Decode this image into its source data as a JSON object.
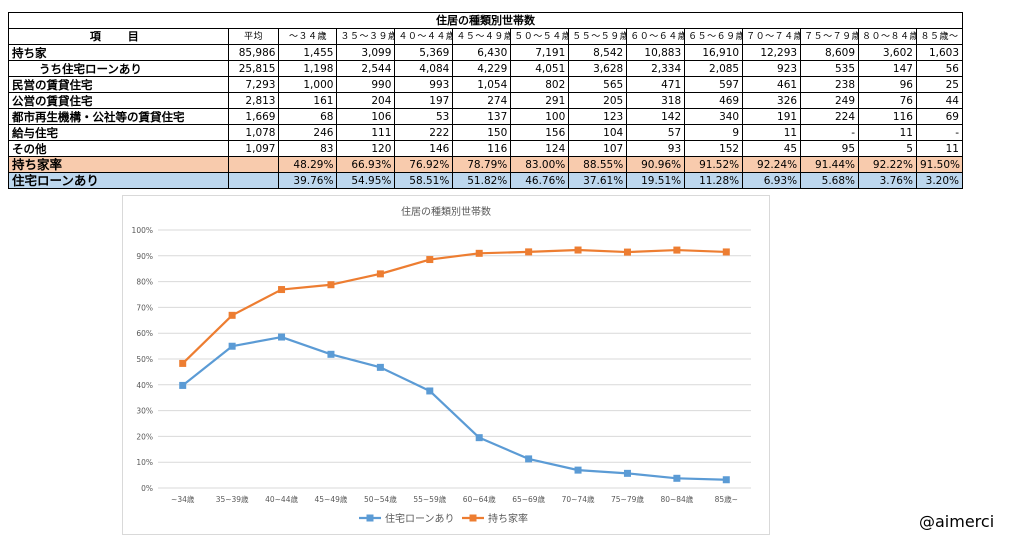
{
  "table": {
    "title": "住居の種類別世帯数",
    "item_header": "項　目",
    "avg_header": "平均",
    "age_headers": [
      "～３４歳",
      "３５～３９歳",
      "４０～４４歳",
      "４５～４９歳",
      "５０～５４歳",
      "５５～５９歳",
      "６０～６４歳",
      "６５～６９歳",
      "７０～７４歳",
      "７５～７９歳",
      "８０～８４歳",
      "８５歳～"
    ],
    "rows": [
      {
        "label": "持ち家",
        "indent": false,
        "avg": "85,986",
        "values": [
          "1,455",
          "3,099",
          "5,369",
          "6,430",
          "7,191",
          "8,542",
          "10,883",
          "16,910",
          "12,293",
          "8,609",
          "3,602",
          "1,603"
        ]
      },
      {
        "label": "うち住宅ローンあり",
        "indent": true,
        "avg": "25,815",
        "values": [
          "1,198",
          "2,544",
          "4,084",
          "4,229",
          "4,051",
          "3,628",
          "2,334",
          "2,085",
          "923",
          "535",
          "147",
          "56"
        ]
      },
      {
        "label": "民営の賃貸住宅",
        "indent": false,
        "avg": "7,293",
        "values": [
          "1,000",
          "990",
          "993",
          "1,054",
          "802",
          "565",
          "471",
          "597",
          "461",
          "238",
          "96",
          "25"
        ]
      },
      {
        "label": "公営の賃貸住宅",
        "indent": false,
        "avg": "2,813",
        "values": [
          "161",
          "204",
          "197",
          "274",
          "291",
          "205",
          "318",
          "469",
          "326",
          "249",
          "76",
          "44"
        ]
      },
      {
        "label": "都市再生機構・公社等の賃貸住宅",
        "indent": false,
        "avg": "1,669",
        "values": [
          "68",
          "106",
          "53",
          "137",
          "100",
          "123",
          "142",
          "340",
          "191",
          "224",
          "116",
          "69"
        ]
      },
      {
        "label": "給与住宅",
        "indent": false,
        "avg": "1,078",
        "values": [
          "246",
          "111",
          "222",
          "150",
          "156",
          "104",
          "57",
          "9",
          "11",
          "-",
          "11",
          "-"
        ]
      },
      {
        "label": "その他",
        "indent": false,
        "avg": "1,097",
        "values": [
          "83",
          "120",
          "146",
          "116",
          "124",
          "107",
          "93",
          "152",
          "45",
          "95",
          "5",
          "11"
        ]
      }
    ],
    "rate_rows": [
      {
        "label": "持ち家率",
        "cls": "own",
        "values": [
          "48.29%",
          "66.93%",
          "76.92%",
          "78.79%",
          "83.00%",
          "88.55%",
          "90.96%",
          "91.52%",
          "92.24%",
          "91.44%",
          "92.22%",
          "91.50%"
        ]
      },
      {
        "label": "住宅ローンあり",
        "cls": "loan",
        "values": [
          "39.76%",
          "54.95%",
          "58.51%",
          "51.82%",
          "46.76%",
          "37.61%",
          "19.51%",
          "11.28%",
          "6.93%",
          "5.68%",
          "3.76%",
          "3.20%"
        ]
      }
    ]
  },
  "chart_data": {
    "type": "line",
    "title": "住居の種類別世帯数",
    "categories": [
      "~34歳",
      "35~39歳",
      "40~44歳",
      "45~49歳",
      "50~54歳",
      "55~59歳",
      "60~64歳",
      "65~69歳",
      "70~74歳",
      "75~79歳",
      "80~84歳",
      "85歳~"
    ],
    "y_ticks": [
      "0%",
      "10%",
      "20%",
      "30%",
      "40%",
      "50%",
      "60%",
      "70%",
      "80%",
      "90%",
      "100%"
    ],
    "ylim": [
      0,
      100
    ],
    "grid": true,
    "legend_position": "bottom",
    "series": [
      {
        "name": "住宅ローンあり",
        "color": "#5b9bd5",
        "values": [
          39.76,
          54.95,
          58.51,
          51.82,
          46.76,
          37.61,
          19.51,
          11.28,
          6.93,
          5.68,
          3.76,
          3.2
        ]
      },
      {
        "name": "持ち家率",
        "color": "#ed7d31",
        "values": [
          48.29,
          66.93,
          76.92,
          78.79,
          83.0,
          88.55,
          90.96,
          91.52,
          92.24,
          91.44,
          92.22,
          91.5
        ]
      }
    ]
  },
  "watermark": "@aimerci"
}
